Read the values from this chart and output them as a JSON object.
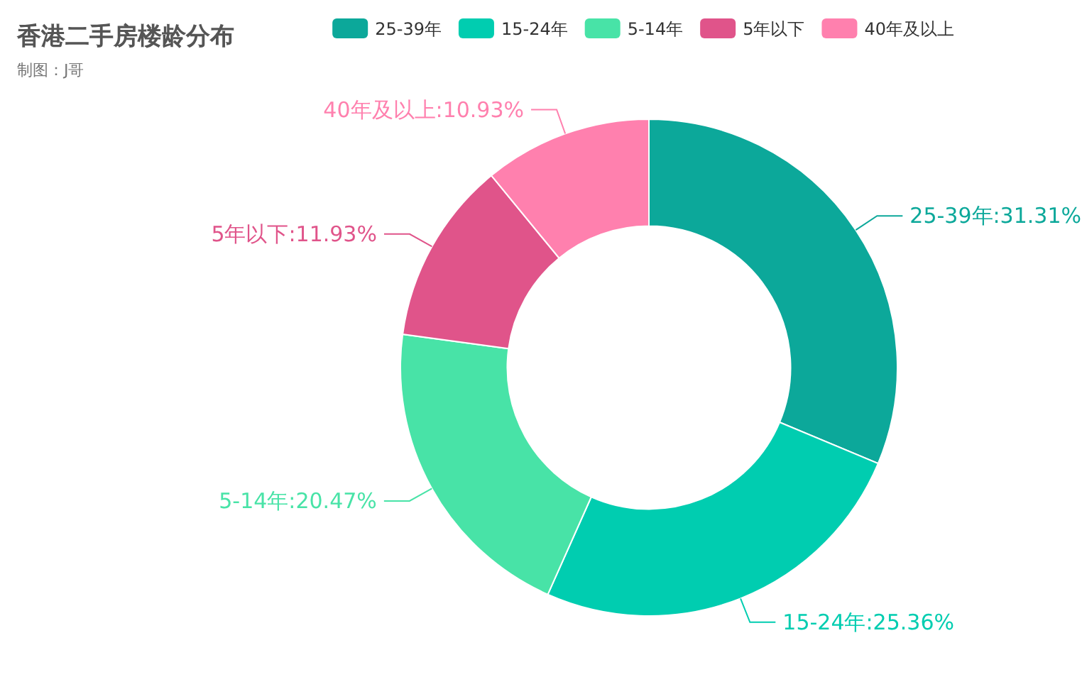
{
  "chart_data": {
    "type": "donut",
    "title": "香港二手房楼龄分布",
    "subtitle": "制图：J哥",
    "categories": [
      "25-39年",
      "15-24年",
      "5-14年",
      "5年以下",
      "40年及以上"
    ],
    "values": [
      31.31,
      25.36,
      20.47,
      11.93,
      10.93
    ],
    "colors": [
      "#0ca89a",
      "#00cdb0",
      "#48e3a7",
      "#e0548a",
      "#ff80ae"
    ],
    "value_labels": [
      "25-39年:31.31%",
      "15-24年:25.36%",
      "5-14年:20.47%",
      "5年以下:11.93%",
      "40年及以上:10.93%"
    ],
    "legend": "top right"
  }
}
